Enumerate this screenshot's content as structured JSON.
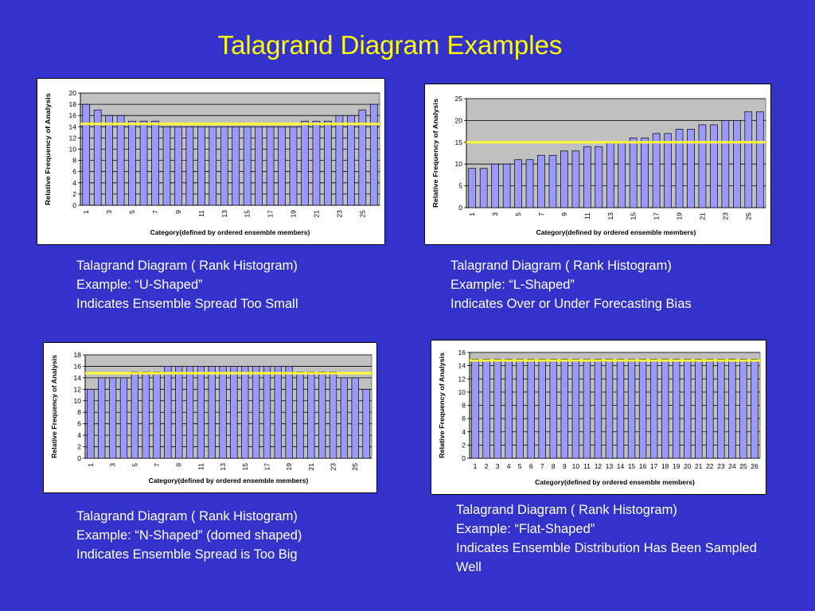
{
  "slide": {
    "title": "Talagrand Diagram Examples"
  },
  "colors": {
    "background": "#3333cc",
    "title": "#ffff00",
    "bar_fill": "#9999ff",
    "plot_area": "#c0c0c0",
    "reference_line": "#ffff33"
  },
  "captions": [
    {
      "lines": [
        "Talagrand Diagram ( Rank Histogram)",
        "Example: “U-Shaped”",
        "Indicates Ensemble Spread Too Small"
      ]
    },
    {
      "lines": [
        "Talagrand Diagram ( Rank Histogram)",
        "Example: “L-Shaped”",
        "Indicates Over or Under Forecasting Bias"
      ]
    },
    {
      "lines": [
        "Talagrand Diagram ( Rank Histogram)",
        "Example: “N-Shaped” (domed shaped)",
        "Indicates Ensemble Spread is Too Big"
      ]
    },
    {
      "lines": [
        "Talagrand Diagram ( Rank Histogram)",
        "Example: “Flat-Shaped”",
        "Indicates Ensemble Distribution Has Been Sampled Well"
      ]
    }
  ],
  "chart_data": [
    {
      "type": "bar",
      "xlabel": "Category(defined by ordered ensemble members)",
      "ylabel": "Relative Frequency of Analysis",
      "ylim": [
        0,
        20
      ],
      "ytick_step": 2,
      "categories": [
        "1",
        "2",
        "3",
        "4",
        "5",
        "6",
        "7",
        "8",
        "9",
        "10",
        "11",
        "12",
        "13",
        "14",
        "15",
        "16",
        "17",
        "18",
        "19",
        "20",
        "21",
        "22",
        "23",
        "24",
        "25",
        "26"
      ],
      "xtick_labels": [
        "1",
        "3",
        "5",
        "7",
        "9",
        "11",
        "13",
        "15",
        "17",
        "19",
        "21",
        "23",
        "25"
      ],
      "xtick_rotated": true,
      "values": [
        18,
        17,
        16,
        16,
        15,
        15,
        15,
        14,
        14,
        14,
        14,
        14,
        14,
        14,
        14,
        14,
        14,
        14,
        14,
        15,
        15,
        15,
        16,
        16,
        17,
        18
      ],
      "reference_line": 14.5,
      "grid": true
    },
    {
      "type": "bar",
      "xlabel": "Category(defined by ordered ensemble members)",
      "ylabel": "Relative Frequency of Analysis",
      "ylim": [
        0,
        25
      ],
      "ytick_step": 5,
      "categories": [
        "1",
        "2",
        "3",
        "4",
        "5",
        "6",
        "7",
        "8",
        "9",
        "10",
        "11",
        "12",
        "13",
        "14",
        "15",
        "16",
        "17",
        "18",
        "19",
        "20",
        "21",
        "22",
        "23",
        "24",
        "25",
        "26"
      ],
      "xtick_labels": [
        "1",
        "3",
        "5",
        "7",
        "9",
        "11",
        "13",
        "15",
        "17",
        "19",
        "21",
        "23",
        "25"
      ],
      "xtick_rotated": true,
      "values": [
        9,
        9,
        10,
        10,
        11,
        11,
        12,
        12,
        13,
        13,
        14,
        14,
        15,
        15,
        16,
        16,
        17,
        17,
        18,
        18,
        19,
        19,
        20,
        20,
        22,
        22
      ],
      "reference_line": 15,
      "grid": true
    },
    {
      "type": "bar",
      "xlabel": "Category(defined by ordered ensemble members)",
      "ylabel": "Relative Frequency of Analysis",
      "ylim": [
        0,
        18
      ],
      "ytick_step": 2,
      "categories": [
        "1",
        "2",
        "3",
        "4",
        "5",
        "6",
        "7",
        "8",
        "9",
        "10",
        "11",
        "12",
        "13",
        "14",
        "15",
        "16",
        "17",
        "18",
        "19",
        "20",
        "21",
        "22",
        "23",
        "24",
        "25",
        "26"
      ],
      "xtick_labels": [
        "1",
        "3",
        "5",
        "7",
        "9",
        "11",
        "13",
        "15",
        "17",
        "19",
        "21",
        "23",
        "25"
      ],
      "xtick_rotated": true,
      "values": [
        12,
        14,
        14,
        14,
        15,
        15,
        15,
        16,
        16,
        16,
        16,
        16,
        16,
        16,
        16,
        16,
        16,
        16,
        16,
        15,
        15,
        15,
        15,
        14,
        14,
        12
      ],
      "reference_line": 14.8,
      "grid": true
    },
    {
      "type": "bar",
      "xlabel": "Category(defined by ordered ensemble members)",
      "ylabel": "Relative Frequency of Analysis",
      "ylim": [
        0,
        16
      ],
      "ytick_step": 2,
      "categories": [
        "1",
        "2",
        "3",
        "4",
        "5",
        "6",
        "7",
        "8",
        "9",
        "10",
        "11",
        "12",
        "13",
        "14",
        "15",
        "16",
        "17",
        "18",
        "19",
        "20",
        "21",
        "22",
        "23",
        "24",
        "25",
        "26"
      ],
      "xtick_labels": [
        "1",
        "2",
        "3",
        "4",
        "5",
        "6",
        "7",
        "8",
        "9",
        "10",
        "11",
        "12",
        "13",
        "14",
        "15",
        "16",
        "17",
        "18",
        "19",
        "20",
        "21",
        "22",
        "23",
        "24",
        "25",
        "26"
      ],
      "xtick_rotated": false,
      "values": [
        15,
        15,
        15,
        15,
        15,
        15,
        15,
        15,
        15,
        15,
        15,
        15,
        15,
        15,
        15,
        15,
        15,
        15,
        15,
        15,
        15,
        15,
        15,
        15,
        15,
        15
      ],
      "reference_line": 14.8,
      "grid": true
    }
  ]
}
